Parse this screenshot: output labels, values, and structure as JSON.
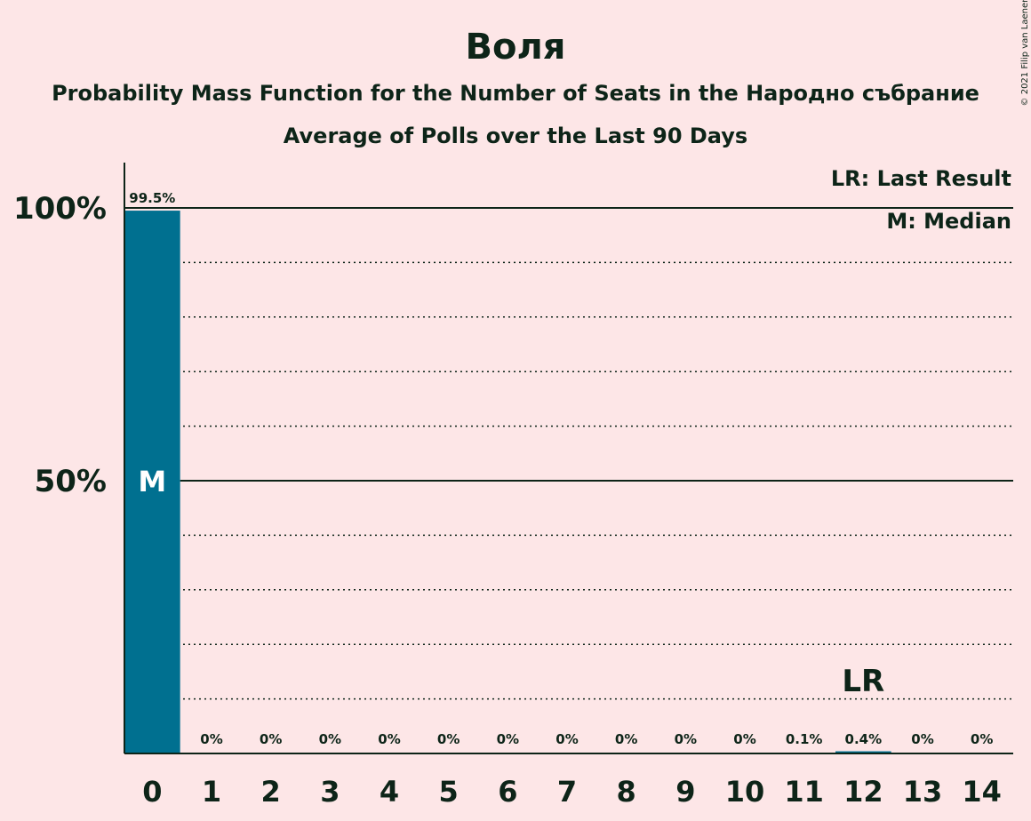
{
  "title": "Воля",
  "subtitle": "Probability Mass Function for the Number of Seats in the Народно събрание",
  "subtitle2": "Average of Polls over the Last 90 Days",
  "copyright": "© 2021 Filip van Laenen",
  "legend": {
    "last_result": "LR: Last Result",
    "median": "M: Median"
  },
  "colors": {
    "background": "#fde6e7",
    "bar": "#007090",
    "text": "#0d2418"
  },
  "chart_data": {
    "type": "bar",
    "categories": [
      "0",
      "1",
      "2",
      "3",
      "4",
      "5",
      "6",
      "7",
      "8",
      "9",
      "10",
      "11",
      "12",
      "13",
      "14"
    ],
    "values": [
      99.5,
      0,
      0,
      0,
      0,
      0,
      0,
      0,
      0,
      0,
      0,
      0.1,
      0.4,
      0,
      0
    ],
    "value_labels": [
      "99.5%",
      "0%",
      "0%",
      "0%",
      "0%",
      "0%",
      "0%",
      "0%",
      "0%",
      "0%",
      "0%",
      "0.1%",
      "0.4%",
      "0%",
      "0%"
    ],
    "y_ticks": [
      {
        "value": 50,
        "label": "50%"
      },
      {
        "value": 100,
        "label": "100%"
      }
    ],
    "ylim": [
      0,
      110
    ],
    "minor_grid_step": 10,
    "median_index": 0,
    "median_label": "M",
    "last_result_index": 12,
    "last_result_label": "LR",
    "legend_position": "top-right",
    "grid": true
  }
}
